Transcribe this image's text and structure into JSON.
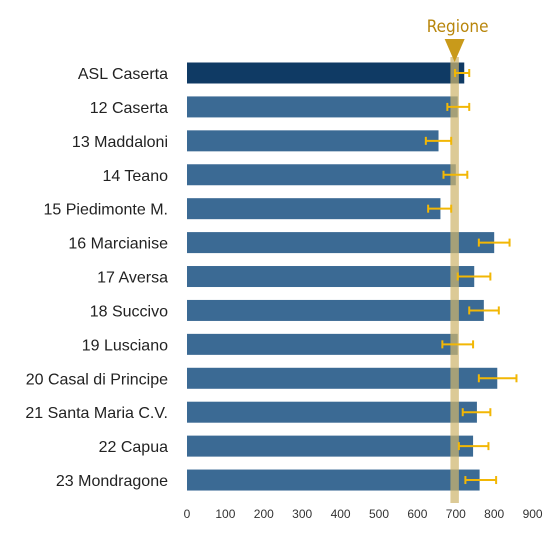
{
  "chart_data": {
    "type": "bar",
    "orientation": "horizontal",
    "title": "",
    "xlabel": "",
    "ylabel": "",
    "xlim": [
      0,
      900
    ],
    "xticks": [
      0,
      100,
      200,
      300,
      400,
      500,
      600,
      700,
      800,
      900
    ],
    "categories": [
      "ASL Caserta",
      "12 Caserta",
      "13 Maddaloni",
      "14 Teano",
      "15 Piedimonte M.",
      "16 Marcianise",
      "17 Aversa",
      "18 Succivo",
      "19 Lusciano",
      "20 Casal di Principe",
      "21 Santa Maria C.V.",
      "22 Capua",
      "23 Mondragone"
    ],
    "values": [
      722,
      705,
      655,
      700,
      660,
      800,
      748,
      773,
      705,
      808,
      755,
      745,
      762
    ],
    "error_low": [
      698,
      678,
      622,
      668,
      628,
      760,
      705,
      735,
      665,
      760,
      718,
      708,
      725
    ],
    "error_high": [
      735,
      735,
      688,
      730,
      688,
      840,
      790,
      812,
      745,
      858,
      790,
      785,
      805
    ],
    "reference": {
      "label": "Regione",
      "value": 697,
      "band": [
        686,
        708
      ]
    },
    "colors": {
      "bar": "#3b6a94",
      "bar_highlight": "#0f3a64",
      "error": "#f2b705",
      "reference_band": "#cfb56e",
      "reference_marker": "#c99a1a",
      "reference_text": "#b8860b"
    },
    "highlight_index": 0,
    "grid": false,
    "legend": "none"
  }
}
